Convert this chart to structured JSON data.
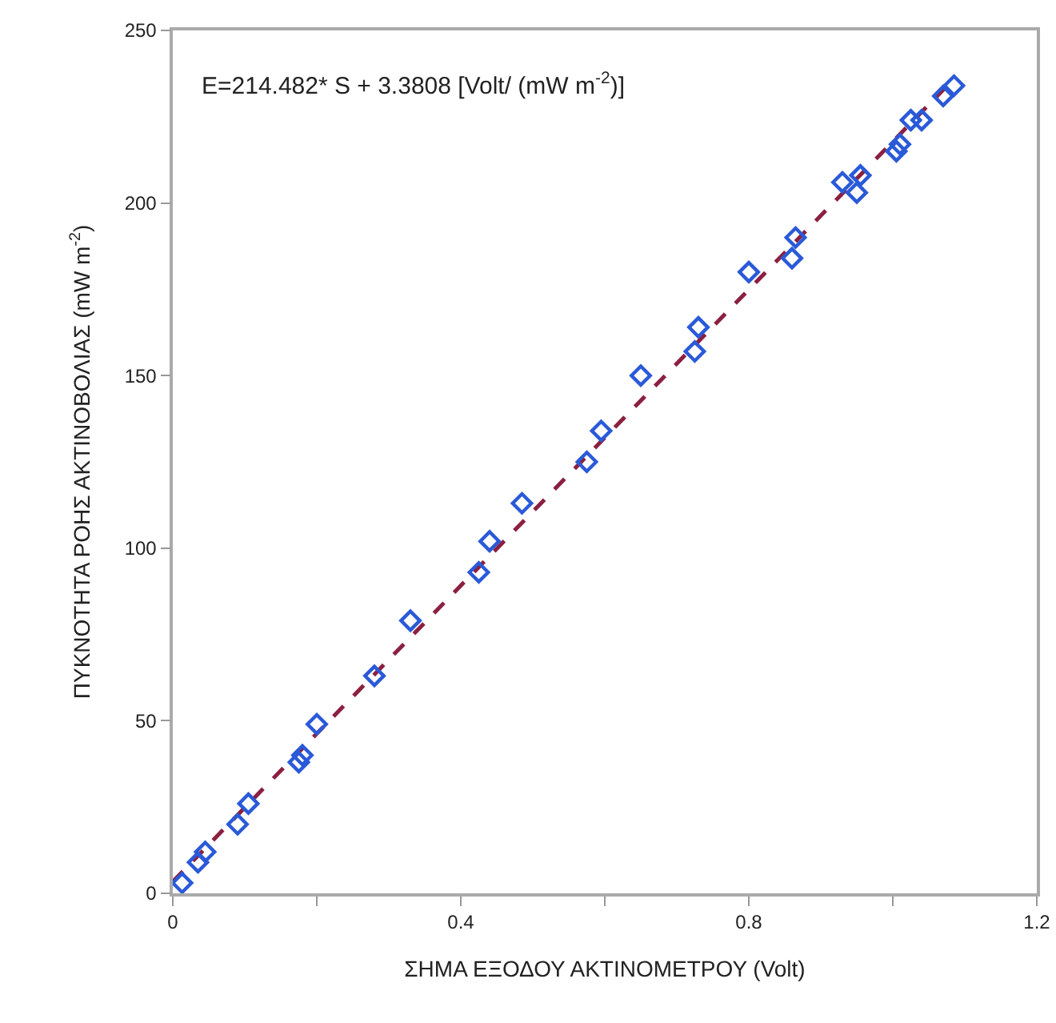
{
  "chart_data": {
    "type": "scatter",
    "xlabel": "ΣΗΜΑ ΕΞΟΔΟΥ ΑΚΤΙΝΟΜΕΤΡΟΥ (Volt)",
    "ylabel": "ΠΥΚΝΟΤΗΤΑ ΡΟΗΣ ΑΚΤΙΝΟΒΟΛΙΑΣ (mW m$^{-2}$)",
    "annotations": [
      "E=214.482* S + 3.3808 [Volt/ (mW m$^{-2}$)]"
    ],
    "xlim": [
      0,
      1.2
    ],
    "xticks": [
      0,
      {
        "value": 0.2,
        "label": null
      },
      0.4,
      {
        "value": 0.6,
        "label": null
      },
      0.8,
      {
        "value": 1.0,
        "label": null
      },
      1.2
    ],
    "ylim": [
      0,
      250
    ],
    "yticks": [
      0,
      50,
      100,
      150,
      200,
      250
    ],
    "grid": false,
    "series": [
      {
        "type": "line",
        "color": "#8b2040",
        "line_style": "dashed",
        "marker": "none",
        "x": [
          0,
          1.085
        ],
        "values": [
          3.4,
          236
        ]
      },
      {
        "color": "#2a5ad8",
        "marker": "diamond",
        "x": [
          0.013,
          0.035,
          0.045,
          0.09,
          0.105,
          0.175,
          0.18,
          0.2,
          0.28,
          0.33,
          0.425,
          0.44,
          0.485,
          0.575,
          0.595,
          0.65,
          0.725,
          0.73,
          0.8,
          0.86,
          0.865,
          0.93,
          0.95,
          0.955,
          1.005,
          1.01,
          1.025,
          1.04,
          1.07,
          1.085
        ],
        "values": [
          3,
          9,
          12,
          20,
          26,
          38,
          40,
          49,
          63,
          79,
          93,
          102,
          113,
          125,
          134,
          150,
          157,
          164,
          180,
          184,
          190,
          206,
          203,
          208,
          215,
          217,
          224,
          224,
          231,
          234
        ]
      }
    ]
  }
}
